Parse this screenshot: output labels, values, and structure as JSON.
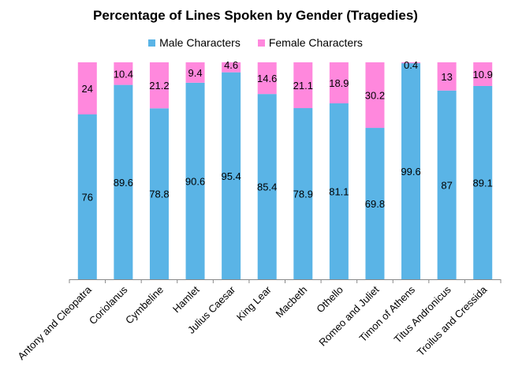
{
  "chart_data": {
    "type": "bar",
    "stacked": true,
    "title": "Percentage of Lines Spoken by Gender (Tragedies)",
    "xlabel": "",
    "ylabel": "",
    "ylim": [
      0,
      100
    ],
    "grid": false,
    "legend_position": "top",
    "categories": [
      "Antony and Cleopatra",
      "Coriolanus",
      "Cymbeline",
      "Hamlet",
      "Julius Caesar",
      "King Lear",
      "Macbeth",
      "Othello",
      "Romeo and Juliet",
      "Timon of Athens",
      "Titus Andronicus",
      "Troilus and Cressida"
    ],
    "series": [
      {
        "name": "Male Characters",
        "color": "#5AB4E6",
        "values": [
          76,
          89.6,
          78.8,
          90.6,
          95.4,
          85.4,
          78.9,
          81.1,
          69.8,
          99.6,
          87,
          89.1
        ]
      },
      {
        "name": "Female Characters",
        "color": "#FF88DD",
        "values": [
          24,
          10.4,
          21.2,
          9.4,
          4.6,
          14.6,
          21.1,
          18.9,
          30.2,
          0.4,
          13,
          10.9
        ]
      }
    ]
  }
}
